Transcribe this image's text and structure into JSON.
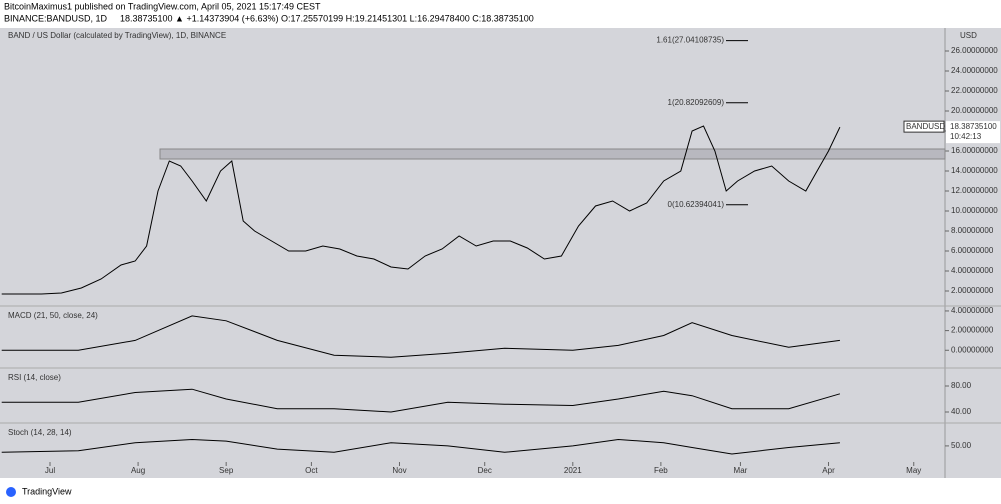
{
  "header": {
    "publisher": "BitcoinMaximus1 published on TradingView.com, April 05, 2021 15:17:49 CEST",
    "symbol": "BINANCE:BANDUSD, 1D",
    "quote": "18.38735100 ▲ +1.14373904 (+6.63%) O:17.25570199 H:19.21451301 L:16.29478400 C:18.38735100",
    "footer": "TradingView"
  },
  "chart_data": [
    {
      "type": "line",
      "title": "BAND / US Dollar (calculated by TradingView), 1D, BINANCE",
      "unit": "USD",
      "color": "#000000",
      "x": [
        -17,
        -10,
        -3,
        4,
        11,
        18,
        25,
        30,
        34,
        38,
        42,
        46,
        50,
        55,
        60,
        64,
        68,
        72,
        78,
        84,
        90,
        96,
        102,
        108,
        114,
        120,
        126,
        132,
        138,
        144,
        150,
        156,
        162,
        168,
        174,
        180,
        186,
        192,
        198,
        204,
        210,
        216,
        222,
        226,
        230,
        234,
        238,
        242,
        248,
        254,
        260,
        266,
        270,
        274,
        278
      ],
      "values": [
        1.7,
        1.7,
        1.7,
        1.8,
        2.3,
        3.2,
        4.6,
        5.0,
        6.5,
        12,
        15,
        14.5,
        13,
        11,
        14,
        15,
        9,
        8,
        7,
        6,
        6,
        6.5,
        6.2,
        5.5,
        5.2,
        4.4,
        4.2,
        5.5,
        6.2,
        7.5,
        6.5,
        7,
        7,
        6.3,
        5.2,
        5.5,
        8.5,
        10.5,
        11,
        10,
        10.8,
        13,
        14,
        18,
        18.5,
        16,
        12,
        13,
        14,
        14.5,
        13,
        12,
        14,
        16,
        18.39
      ],
      "xlim": [
        -17.6,
        315
      ],
      "xticks": [
        {
          "value": 0,
          "label": "Jul"
        },
        {
          "value": 31,
          "label": "Aug"
        },
        {
          "value": 62,
          "label": "Sep"
        },
        {
          "value": 92,
          "label": "Oct"
        },
        {
          "value": 123,
          "label": "Nov"
        },
        {
          "value": 153,
          "label": "Dec"
        },
        {
          "value": 184,
          "label": "2021"
        },
        {
          "value": 215,
          "label": "Feb"
        },
        {
          "value": 243,
          "label": "Mar"
        },
        {
          "value": 274,
          "label": "Apr"
        },
        {
          "value": 304,
          "label": "May"
        }
      ],
      "ylim": [
        0.6,
        28.3
      ],
      "yticks": [
        {
          "value": 2,
          "label": "2.00000000"
        },
        {
          "value": 4,
          "label": "4.00000000"
        },
        {
          "value": 6,
          "label": "6.00000000"
        },
        {
          "value": 8,
          "label": "8.00000000"
        },
        {
          "value": 10,
          "label": "10.00000000"
        },
        {
          "value": 12,
          "label": "12.00000000"
        },
        {
          "value": 14,
          "label": "14.00000000"
        },
        {
          "value": 16,
          "label": "16.00000000"
        },
        {
          "value": 18,
          "label": "18.00000000"
        },
        {
          "value": 20,
          "label": "20.00000000"
        },
        {
          "value": 22,
          "label": "22.00000000"
        },
        {
          "value": 24,
          "label": "24.00000000"
        },
        {
          "value": 26,
          "label": "26.00000000"
        }
      ],
      "zone": [
        15.2,
        16.2
      ],
      "annotations": [
        {
          "value": 27.04108735,
          "label": "1.61(27.04108735)"
        },
        {
          "value": 20.82092609,
          "label": "1(20.82092609)"
        },
        {
          "value": 10.62394041,
          "label": "0(10.62394041)"
        }
      ],
      "last_price": {
        "symbol": "BANDUSD",
        "value": 18.387351,
        "label": "18.38735100",
        "countdown": "10:42:13"
      }
    },
    {
      "type": "line",
      "title": "MACD (21, 50, close, 24)",
      "color": "#000000",
      "x": [
        -17,
        10,
        30,
        50,
        62,
        80,
        100,
        120,
        140,
        160,
        184,
        200,
        216,
        226,
        240,
        260,
        278
      ],
      "values": [
        0,
        0,
        1,
        3.5,
        3,
        1,
        -0.5,
        -0.7,
        -0.3,
        0.2,
        0,
        0.5,
        1.5,
        2.8,
        1.5,
        0.3,
        1.0
      ],
      "xlim": [
        -17.6,
        315
      ],
      "ylim": [
        -1.6,
        4.3
      ],
      "yticks": [
        {
          "value": 0,
          "label": "0.00000000"
        },
        {
          "value": 2,
          "label": "2.00000000"
        },
        {
          "value": 4,
          "label": "4.00000000"
        }
      ]
    },
    {
      "type": "line",
      "title": "RSI (14, close)",
      "color": "#000000",
      "x": [
        -17,
        10,
        30,
        50,
        62,
        80,
        100,
        120,
        140,
        160,
        184,
        200,
        216,
        226,
        240,
        260,
        278
      ],
      "values": [
        55,
        55,
        70,
        75,
        60,
        45,
        45,
        40,
        55,
        52,
        50,
        60,
        72,
        65,
        45,
        45,
        68
      ],
      "xlim": [
        -17.6,
        315
      ],
      "ylim": [
        24.6,
        104.6
      ],
      "yticks": [
        {
          "value": 40,
          "label": "40.00"
        },
        {
          "value": 80,
          "label": "80.00"
        }
      ]
    },
    {
      "type": "line",
      "title": "Stoch (14, 28, 14)",
      "color": "#000000",
      "x": [
        -17,
        10,
        30,
        50,
        62,
        80,
        100,
        120,
        140,
        160,
        184,
        200,
        216,
        226,
        240,
        260,
        278
      ],
      "values": [
        30,
        35,
        60,
        70,
        65,
        40,
        30,
        60,
        50,
        30,
        50,
        70,
        60,
        45,
        25,
        45,
        60
      ],
      "xlim": [
        -17.6,
        315
      ],
      "ylim": [
        0,
        115
      ],
      "yticks": [
        {
          "value": 50,
          "label": "50.00"
        }
      ]
    }
  ]
}
